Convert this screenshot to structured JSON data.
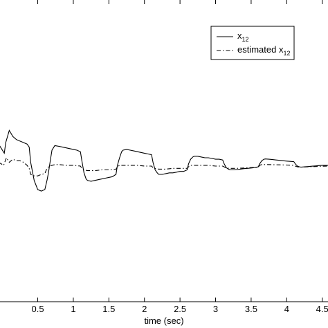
{
  "chart_data": {
    "type": "line",
    "xlabel": "time (sec)",
    "ylabel": "",
    "title": "",
    "xlim": [
      -0.05,
      4.6
    ],
    "ylim": [
      -1.0,
      1.0
    ],
    "xticks": [
      "0.5",
      "1",
      "1.5",
      "2",
      "2.5",
      "3",
      "3.5",
      "4",
      "4.5"
    ],
    "grid": false,
    "legend": {
      "placement": "top-right",
      "entries": [
        {
          "base": "x",
          "sub": "12",
          "style": "solid"
        },
        {
          "base": "estimated x",
          "sub": "12",
          "style": "dash-dot"
        }
      ]
    },
    "series": [
      {
        "style": "solid",
        "x": [
          -0.05,
          0.03,
          0.05,
          0.1,
          0.15,
          0.2,
          0.25,
          0.3,
          0.35,
          0.38,
          0.4,
          0.45,
          0.5,
          0.55,
          0.6,
          0.63,
          0.65,
          0.68,
          0.7,
          0.74,
          0.8,
          0.85,
          0.9,
          0.95,
          1.0,
          1.05,
          1.1,
          1.12,
          1.15,
          1.18,
          1.2,
          1.25,
          1.3,
          1.35,
          1.4,
          1.45,
          1.5,
          1.55,
          1.6,
          1.62,
          1.65,
          1.68,
          1.7,
          1.75,
          1.8,
          1.85,
          1.9,
          1.95,
          2.0,
          2.05,
          2.1,
          2.12,
          2.15,
          2.18,
          2.2,
          2.25,
          2.3,
          2.35,
          2.4,
          2.45,
          2.5,
          2.55,
          2.6,
          2.62,
          2.65,
          2.68,
          2.7,
          2.75,
          2.8,
          2.85,
          2.9,
          2.95,
          3.0,
          3.05,
          3.1,
          3.12,
          3.15,
          3.18,
          3.2,
          3.25,
          3.3,
          3.35,
          3.4,
          3.45,
          3.5,
          3.55,
          3.6,
          3.62,
          3.65,
          3.68,
          3.7,
          3.75,
          3.8,
          3.85,
          3.9,
          3.95,
          4.0,
          4.05,
          4.1,
          4.12,
          4.15,
          4.18,
          4.2,
          4.25,
          4.3,
          4.35,
          4.4,
          4.45,
          4.5,
          4.55,
          4.6
        ],
        "y": [
          0.04,
          -0.02,
          0.05,
          0.13,
          0.09,
          0.07,
          0.06,
          0.05,
          0.04,
          0.02,
          -0.08,
          -0.2,
          -0.26,
          -0.27,
          -0.26,
          -0.2,
          -0.15,
          -0.06,
          0.0,
          0.03,
          0.025,
          0.02,
          0.015,
          0.01,
          0.005,
          0.0,
          -0.01,
          -0.07,
          -0.15,
          -0.19,
          -0.2,
          -0.205,
          -0.2,
          -0.195,
          -0.19,
          -0.185,
          -0.18,
          -0.175,
          -0.16,
          -0.1,
          -0.05,
          -0.01,
          0.0,
          0.005,
          0.0,
          -0.005,
          -0.01,
          -0.015,
          -0.02,
          -0.025,
          -0.03,
          -0.08,
          -0.13,
          -0.15,
          -0.16,
          -0.16,
          -0.155,
          -0.15,
          -0.15,
          -0.145,
          -0.14,
          -0.14,
          -0.13,
          -0.09,
          -0.06,
          -0.045,
          -0.04,
          -0.04,
          -0.045,
          -0.05,
          -0.05,
          -0.055,
          -0.06,
          -0.06,
          -0.065,
          -0.09,
          -0.115,
          -0.125,
          -0.13,
          -0.13,
          -0.128,
          -0.125,
          -0.122,
          -0.12,
          -0.118,
          -0.115,
          -0.11,
          -0.09,
          -0.07,
          -0.06,
          -0.058,
          -0.06,
          -0.062,
          -0.065,
          -0.067,
          -0.07,
          -0.072,
          -0.074,
          -0.076,
          -0.09,
          -0.105,
          -0.11,
          -0.112,
          -0.11,
          -0.108,
          -0.106,
          -0.104,
          -0.102,
          -0.1,
          -0.1,
          -0.1
        ]
      },
      {
        "style": "dash-dot",
        "x": [
          -0.05,
          0.02,
          0.06,
          0.1,
          0.15,
          0.2,
          0.25,
          0.3,
          0.35,
          0.38,
          0.4,
          0.45,
          0.5,
          0.55,
          0.6,
          0.62,
          0.65,
          0.7,
          0.75,
          0.8,
          0.9,
          1.0,
          1.1,
          1.12,
          1.15,
          1.2,
          1.3,
          1.4,
          1.5,
          1.6,
          1.62,
          1.65,
          1.7,
          1.8,
          1.9,
          2.0,
          2.1,
          2.12,
          2.15,
          2.2,
          2.3,
          2.4,
          2.5,
          2.6,
          2.62,
          2.65,
          2.7,
          2.8,
          2.9,
          3.0,
          3.1,
          3.12,
          3.15,
          3.2,
          3.3,
          3.4,
          3.5,
          3.6,
          3.62,
          3.65,
          3.7,
          3.8,
          3.9,
          4.0,
          4.1,
          4.12,
          4.15,
          4.2,
          4.3,
          4.4,
          4.5,
          4.6
        ],
        "y": [
          -0.08,
          -0.1,
          -0.05,
          -0.08,
          -0.06,
          -0.07,
          -0.07,
          -0.08,
          -0.1,
          -0.12,
          -0.16,
          -0.17,
          -0.17,
          -0.16,
          -0.155,
          -0.13,
          -0.11,
          -0.1,
          -0.095,
          -0.095,
          -0.1,
          -0.1,
          -0.105,
          -0.12,
          -0.13,
          -0.135,
          -0.135,
          -0.13,
          -0.13,
          -0.125,
          -0.11,
          -0.1,
          -0.1,
          -0.1,
          -0.1,
          -0.105,
          -0.105,
          -0.115,
          -0.12,
          -0.125,
          -0.125,
          -0.12,
          -0.12,
          -0.12,
          -0.11,
          -0.1,
          -0.1,
          -0.1,
          -0.1,
          -0.105,
          -0.105,
          -0.11,
          -0.118,
          -0.12,
          -0.12,
          -0.118,
          -0.115,
          -0.112,
          -0.1,
          -0.095,
          -0.095,
          -0.096,
          -0.097,
          -0.098,
          -0.1,
          -0.105,
          -0.11,
          -0.112,
          -0.11,
          -0.108,
          -0.106,
          -0.105
        ]
      }
    ]
  }
}
